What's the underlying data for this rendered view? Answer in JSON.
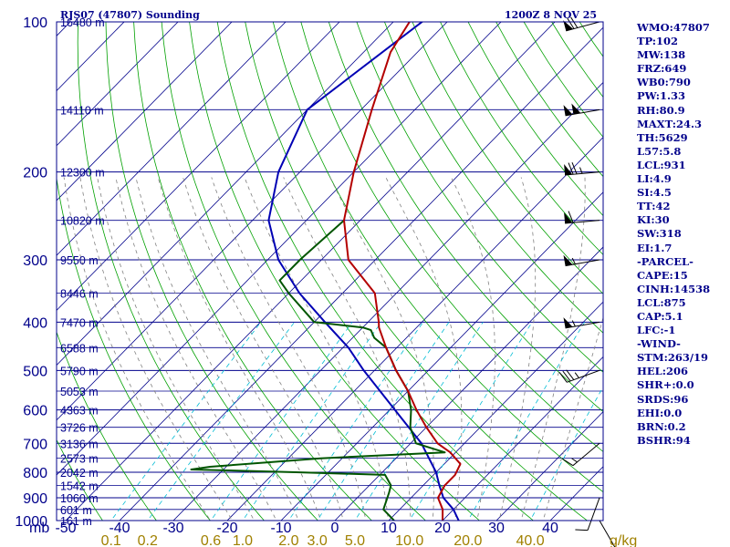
{
  "chart_data": {
    "type": "skew-t",
    "title_left": "RJS07 (47807) Sounding",
    "title_right": "1200Z  8 NOV 25",
    "pressure_levels": [
      100,
      200,
      300,
      400,
      500,
      600,
      700,
      800,
      900,
      1000
    ],
    "pressure_unit": "mb",
    "temperature_ticks": [
      -50,
      -40,
      -30,
      -20,
      -10,
      0,
      10,
      20,
      30,
      40
    ],
    "mixing_ratio_ticks": [
      "0.1",
      "0.2",
      "0.6",
      "1.0",
      "2.0",
      "3.0",
      "5.0",
      "10.0",
      "20.0",
      "40.0"
    ],
    "mixing_ratio_unit": "g/kg",
    "height_labels": [
      {
        "p": 100,
        "label": "16480 m"
      },
      {
        "p": 150,
        "label": "14110 m"
      },
      {
        "p": 200,
        "label": "12300 m"
      },
      {
        "p": 250,
        "label": "10820 m"
      },
      {
        "p": 300,
        "label": "9550 m"
      },
      {
        "p": 350,
        "label": "8446 m"
      },
      {
        "p": 400,
        "label": "7470 m"
      },
      {
        "p": 450,
        "label": "6588 m"
      },
      {
        "p": 500,
        "label": "5790 m"
      },
      {
        "p": 550,
        "label": "5053 m"
      },
      {
        "p": 600,
        "label": "4363 m"
      },
      {
        "p": 650,
        "label": "3726 m"
      },
      {
        "p": 700,
        "label": "3136 m"
      },
      {
        "p": 750,
        "label": "2573 m"
      },
      {
        "p": 800,
        "label": "2042 m"
      },
      {
        "p": 850,
        "label": "1542 m"
      },
      {
        "p": 900,
        "label": "1060 m"
      },
      {
        "p": 950,
        "label": "601 m"
      },
      {
        "p": 1000,
        "label": "161 m"
      }
    ],
    "temperature_profile": [
      [
        100,
        -77
      ],
      [
        115,
        -75
      ],
      [
        150,
        -68
      ],
      [
        200,
        -60
      ],
      [
        250,
        -53
      ],
      [
        300,
        -45
      ],
      [
        350,
        -34
      ],
      [
        400,
        -28
      ],
      [
        410,
        -27
      ],
      [
        450,
        -22
      ],
      [
        500,
        -16
      ],
      [
        550,
        -10
      ],
      [
        600,
        -5
      ],
      [
        650,
        0
      ],
      [
        700,
        5
      ],
      [
        730,
        9
      ],
      [
        770,
        13
      ],
      [
        810,
        14
      ],
      [
        850,
        14
      ],
      [
        900,
        15
      ],
      [
        950,
        18
      ],
      [
        1000,
        20
      ]
    ],
    "dewpoint_profile": [
      [
        250,
        -53
      ],
      [
        300,
        -54
      ],
      [
        330,
        -54
      ],
      [
        350,
        -50
      ],
      [
        400,
        -40
      ],
      [
        410,
        -30
      ],
      [
        415,
        -28
      ],
      [
        430,
        -26
      ],
      [
        450,
        -22
      ],
      [
        500,
        -16
      ],
      [
        550,
        -10
      ],
      [
        600,
        -6
      ],
      [
        650,
        -3
      ],
      [
        700,
        1
      ],
      [
        730,
        8
      ],
      [
        750,
        -14
      ],
      [
        780,
        -33
      ],
      [
        790,
        -36
      ],
      [
        800,
        -16
      ],
      [
        810,
        1
      ],
      [
        850,
        4
      ],
      [
        880,
        5
      ],
      [
        950,
        7
      ],
      [
        1000,
        11
      ]
    ],
    "parcel_profile": [
      [
        95,
        -74
      ],
      [
        150,
        -80
      ],
      [
        200,
        -74
      ],
      [
        250,
        -67
      ],
      [
        300,
        -58
      ],
      [
        350,
        -48
      ],
      [
        400,
        -38
      ],
      [
        450,
        -29
      ],
      [
        500,
        -22
      ],
      [
        600,
        -9
      ],
      [
        700,
        2
      ],
      [
        800,
        10
      ],
      [
        850,
        13
      ],
      [
        900,
        16
      ],
      [
        950,
        20
      ],
      [
        1000,
        23
      ]
    ],
    "wind_barbs": [
      {
        "p": 100,
        "dir": 255,
        "speed": 70
      },
      {
        "p": 150,
        "dir": 260,
        "speed": 100
      },
      {
        "p": 200,
        "dir": 265,
        "speed": 75
      },
      {
        "p": 250,
        "dir": 265,
        "speed": 60
      },
      {
        "p": 300,
        "dir": 260,
        "speed": 55
      },
      {
        "p": 400,
        "dir": 260,
        "speed": 55
      },
      {
        "p": 500,
        "dir": 250,
        "speed": 35
      },
      {
        "p": 700,
        "dir": 230,
        "speed": 15
      },
      {
        "p": 900,
        "dir": 200,
        "speed": 10
      },
      {
        "p": 1000,
        "dir": 150,
        "speed": 10
      }
    ],
    "colors": {
      "temperature": "#b40000",
      "dewpoint": "#005500",
      "parcel": "#0000b4",
      "isobar": "#00008b",
      "skewed_isotherm": "#00008b",
      "dry_adiabat": "#00a000",
      "mixing_ratio": "#00bcd4",
      "moist_adiabat": "#808080",
      "mixing_ratio_labels": "#a08000",
      "axis_text": "#00008b"
    }
  },
  "indices": [
    "WMO:47807",
    "TP:102",
    "MW:138",
    "FRZ:649",
    "WB0:790",
    "PW:1.33",
    "RH:80.9",
    "MAXT:24.3",
    "TH:5629",
    "L57:5.8",
    "LCL:931",
    "LI:4.9",
    "SI:4.5",
    "TT:42",
    "KI:30",
    "SW:318",
    "EI:1.7",
    "-PARCEL-",
    "CAPE:15",
    "CINH:14538",
    "LCL:875",
    "CAP:5.1",
    "LFC:-1",
    "-WIND-",
    "STM:263/19",
    "HEL:206",
    "SHR+:0.0",
    "SRDS:96",
    "EHI:0.0",
    "BRN:0.2",
    "BSHR:94"
  ]
}
